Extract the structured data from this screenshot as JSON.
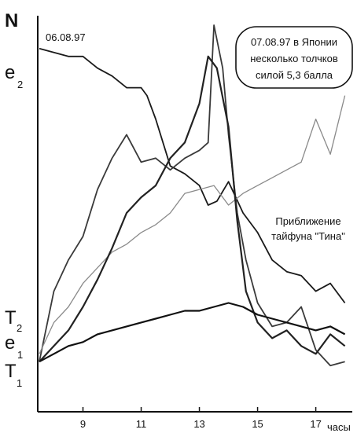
{
  "chart_data": {
    "type": "line",
    "date_label": "06.08.97",
    "xunit": "часы",
    "xlim": [
      7.5,
      18.2
    ],
    "x_ticks": [
      "9",
      "11",
      "13",
      "15",
      "17"
    ],
    "x_tick_values": [
      9,
      11,
      13,
      15,
      17
    ],
    "ylabel": "N",
    "grid": false,
    "legend": "none",
    "annotations": {
      "quake": [
        "07.08.97 в Японии",
        "несколько толчков",
        "силой 5,3 балла"
      ],
      "typhoon": [
        "Приближение",
        "тайфуна \"Тина\""
      ]
    },
    "series": [
      {
        "name": "e2",
        "label_main": "e",
        "label_sub": "2",
        "color": "#1a1a1a",
        "x": [
          7.5,
          8.0,
          8.5,
          9.0,
          9.5,
          10.0,
          10.5,
          11.0,
          11.2,
          11.5,
          12.0,
          12.5,
          13.0,
          13.3,
          13.6,
          14.0,
          14.5,
          15.0,
          15.5,
          16.0,
          16.5,
          17.0,
          17.5,
          18.0
        ],
        "y": [
          0.92,
          0.91,
          0.9,
          0.9,
          0.87,
          0.85,
          0.82,
          0.82,
          0.8,
          0.74,
          0.62,
          0.6,
          0.57,
          0.52,
          0.53,
          0.58,
          0.5,
          0.45,
          0.38,
          0.35,
          0.34,
          0.3,
          0.32,
          0.27
        ]
      },
      {
        "name": "N",
        "label_main": "N",
        "label_sub": "",
        "color": "#3a3a3a",
        "x": [
          7.5,
          8.0,
          8.5,
          9.0,
          9.5,
          10.0,
          10.5,
          11.0,
          11.5,
          12.0,
          12.5,
          13.0,
          13.3,
          13.5,
          13.8,
          14.0,
          14.3,
          14.6,
          15.0,
          15.5,
          16.0,
          16.5,
          17.0,
          17.5,
          18.0
        ],
        "y": [
          0.12,
          0.3,
          0.38,
          0.44,
          0.56,
          0.64,
          0.7,
          0.63,
          0.64,
          0.61,
          0.64,
          0.66,
          0.68,
          0.98,
          0.87,
          0.7,
          0.5,
          0.38,
          0.27,
          0.21,
          0.22,
          0.26,
          0.15,
          0.11,
          0.12
        ]
      },
      {
        "name": "T2",
        "label_main": "T",
        "label_sub": "2",
        "color": "#8a8a8a",
        "x": [
          7.5,
          8.0,
          8.5,
          9.0,
          9.5,
          10.0,
          10.5,
          11.0,
          11.5,
          12.0,
          12.5,
          13.0,
          13.5,
          14.0,
          14.5,
          15.0,
          15.5,
          16.0,
          16.5,
          17.0,
          17.5,
          18.0
        ],
        "y": [
          0.14,
          0.22,
          0.26,
          0.32,
          0.36,
          0.4,
          0.42,
          0.45,
          0.47,
          0.5,
          0.55,
          0.56,
          0.57,
          0.52,
          0.55,
          0.57,
          0.59,
          0.61,
          0.63,
          0.74,
          0.65,
          0.8
        ]
      },
      {
        "name": "e1",
        "label_main": "e",
        "label_sub": "1",
        "color": "#222222",
        "x": [
          7.5,
          8.0,
          8.5,
          9.0,
          9.5,
          10.0,
          10.5,
          11.0,
          11.5,
          12.0,
          12.5,
          13.0,
          13.3,
          13.6,
          14.0,
          14.3,
          14.6,
          15.0,
          15.5,
          16.0,
          16.5,
          17.0,
          17.5,
          18.0
        ],
        "y": [
          0.12,
          0.16,
          0.2,
          0.26,
          0.33,
          0.41,
          0.5,
          0.54,
          0.57,
          0.64,
          0.68,
          0.78,
          0.9,
          0.87,
          0.72,
          0.48,
          0.3,
          0.22,
          0.18,
          0.2,
          0.16,
          0.14,
          0.19,
          0.16
        ]
      },
      {
        "name": "T1",
        "label_main": "T",
        "label_sub": "1",
        "color": "#111111",
        "x": [
          7.5,
          8.0,
          8.5,
          9.0,
          9.5,
          10.0,
          10.5,
          11.0,
          11.5,
          12.0,
          12.5,
          13.0,
          13.5,
          14.0,
          14.5,
          15.0,
          15.5,
          16.0,
          16.5,
          17.0,
          17.5,
          18.0
        ],
        "y": [
          0.12,
          0.14,
          0.16,
          0.17,
          0.19,
          0.2,
          0.21,
          0.22,
          0.23,
          0.24,
          0.25,
          0.25,
          0.26,
          0.27,
          0.26,
          0.24,
          0.23,
          0.22,
          0.21,
          0.2,
          0.21,
          0.19
        ]
      }
    ]
  }
}
